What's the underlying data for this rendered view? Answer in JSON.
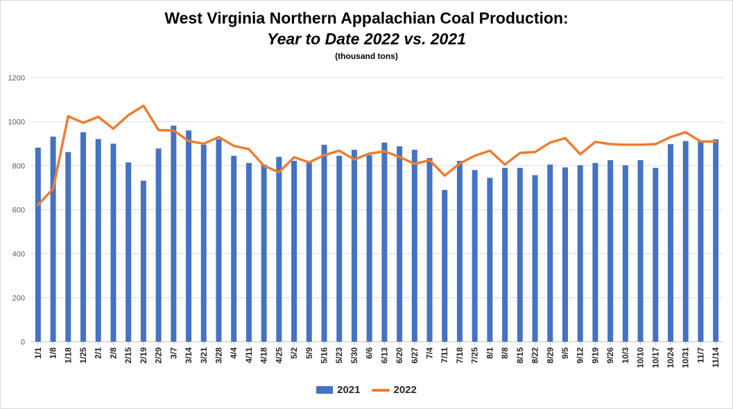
{
  "chart_data": {
    "type": "bar",
    "title": "West Virginia Northern Appalachian Coal Production:",
    "subtitle_italic": "Year to Date 2022 vs. 2021",
    "units_note": "(thousand tons)",
    "categories": [
      "1/1",
      "1/8",
      "1/18",
      "1/25",
      "2/1",
      "2/8",
      "2/15",
      "2/19",
      "2/29",
      "3/7",
      "3/14",
      "3/21",
      "3/28",
      "4/4",
      "4/11",
      "4/18",
      "4/25",
      "5/2",
      "5/9",
      "5/16",
      "5/23",
      "5/30",
      "6/6",
      "6/13",
      "6/20",
      "6/27",
      "7/4",
      "7/11",
      "7/18",
      "7/25",
      "8/1",
      "8/8",
      "8/15",
      "8/22",
      "8/29",
      "9/5",
      "9/12",
      "9/19",
      "9/26",
      "10/3",
      "10/10",
      "10/17",
      "10/24",
      "10/31",
      "11/7",
      "11/14"
    ],
    "ylim": [
      0,
      1200
    ],
    "yticks": [
      0,
      200,
      400,
      600,
      800,
      1000,
      1200
    ],
    "grid": true,
    "legend_position": "bottom",
    "series": [
      {
        "name": "2021",
        "kind": "bar",
        "color": "#4472c4",
        "values": [
          882,
          932,
          862,
          952,
          921,
          900,
          815,
          732,
          878,
          982,
          960,
          895,
          920,
          845,
          812,
          805,
          840,
          822,
          820,
          895,
          845,
          872,
          848,
          905,
          888,
          872,
          835,
          690,
          822,
          780,
          745,
          790,
          790,
          757,
          805,
          792,
          802,
          812,
          825,
          802,
          825,
          790,
          898,
          912,
          910,
          920
        ]
      },
      {
        "name": "2022",
        "kind": "line",
        "color": "#ed7d31",
        "values": [
          622,
          695,
          1025,
          995,
          1022,
          968,
          1030,
          1072,
          962,
          960,
          912,
          900,
          930,
          890,
          875,
          800,
          770,
          838,
          815,
          848,
          868,
          828,
          855,
          865,
          840,
          808,
          825,
          755,
          810,
          845,
          868,
          805,
          858,
          862,
          905,
          925,
          852,
          908,
          898,
          895,
          895,
          898,
          930,
          952,
          910,
          910
        ]
      }
    ]
  }
}
